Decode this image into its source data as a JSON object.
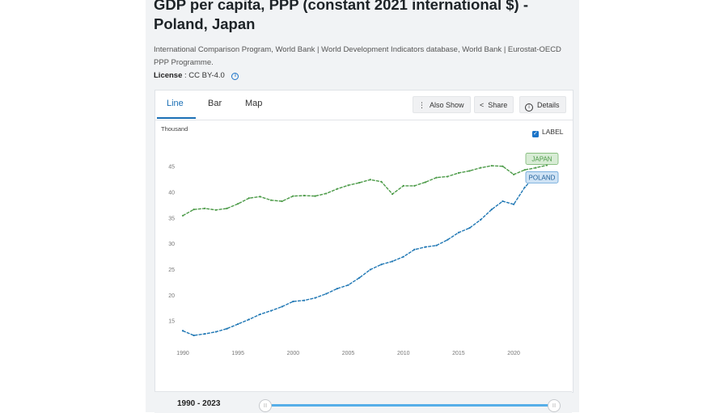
{
  "header": {
    "title": "GDP per capita, PPP (constant 2021 international $) - Poland, Japan",
    "source": "International Comparison Program, World Bank | World Development Indicators database, World Bank | Eurostat-OECD PPP Programme.",
    "license_label": "License",
    "license_value": ": CC BY-4.0",
    "info_icon": "info-icon"
  },
  "tabs": [
    {
      "label": "Line",
      "active": true
    },
    {
      "label": "Bar",
      "active": false
    },
    {
      "label": "Map",
      "active": false
    }
  ],
  "toolbar": {
    "also_show": "Also Show",
    "share": "Share",
    "details": "Details"
  },
  "label_toggle": {
    "text": "LABEL",
    "checked": true
  },
  "range": {
    "label": "1990 - 2023"
  },
  "colors": {
    "poland": "#1f77b4",
    "japan": "#4b9a47",
    "accent": "#1a6fb5"
  },
  "chart_data": {
    "type": "line",
    "ylabel": "Thousand",
    "xlim": [
      1990,
      2023
    ],
    "ylim": [
      11,
      47
    ],
    "yticks": [
      15,
      20,
      25,
      30,
      35,
      40,
      45
    ],
    "xticks": [
      1990,
      1995,
      2000,
      2005,
      2010,
      2015,
      2020
    ],
    "grid": false,
    "x": [
      1990,
      1991,
      1992,
      1993,
      1994,
      1995,
      1996,
      1997,
      1998,
      1999,
      2000,
      2001,
      2002,
      2003,
      2004,
      2005,
      2006,
      2007,
      2008,
      2009,
      2010,
      2011,
      2012,
      2013,
      2014,
      2015,
      2016,
      2017,
      2018,
      2019,
      2020,
      2021,
      2022,
      2023
    ],
    "series": [
      {
        "name": "JAPAN",
        "values": [
          35.4,
          36.6,
          36.8,
          36.5,
          36.8,
          37.7,
          38.8,
          39.1,
          38.4,
          38.2,
          39.2,
          39.3,
          39.2,
          39.7,
          40.6,
          41.3,
          41.8,
          42.4,
          42.0,
          39.6,
          41.2,
          41.2,
          41.9,
          42.8,
          43.0,
          43.7,
          44.1,
          44.7,
          45.1,
          45.0,
          43.4,
          44.3,
          44.7,
          45.2
        ]
      },
      {
        "name": "POLAND",
        "values": [
          13.0,
          12.1,
          12.4,
          12.8,
          13.4,
          14.3,
          15.2,
          16.2,
          16.9,
          17.7,
          18.7,
          18.9,
          19.4,
          20.2,
          21.2,
          21.9,
          23.3,
          24.9,
          25.9,
          26.5,
          27.4,
          28.8,
          29.3,
          29.6,
          30.7,
          32.1,
          33.0,
          34.6,
          36.6,
          38.2,
          37.6,
          40.9,
          43.2,
          43.8
        ]
      }
    ]
  }
}
